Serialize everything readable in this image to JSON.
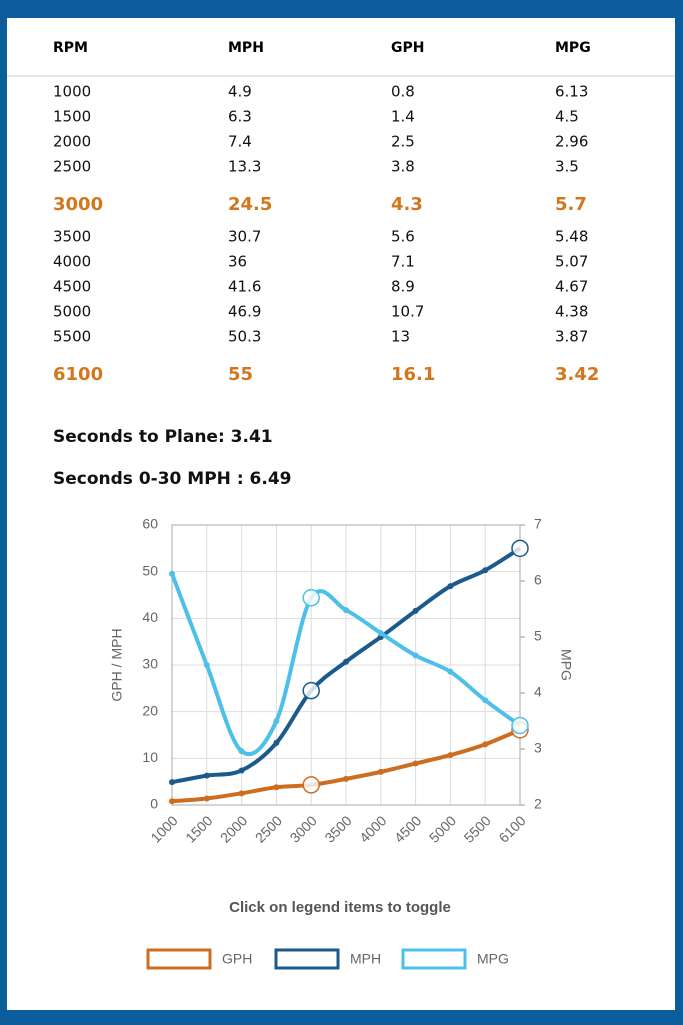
{
  "table_header": "RPM",
  "stats": [
    "Seconds to Plane: 3.41",
    "Seconds 0-30 MPH : 6.49"
  ],
  "chart_data": {
    "type": "line",
    "categories": [
      "1000",
      "1500",
      "2000",
      "2500",
      "3000",
      "3500",
      "4000",
      "4500",
      "5000",
      "5500",
      "6100"
    ],
    "series": [
      {
        "name": "GPH",
        "color": "#cc6d1f",
        "values": [
          0.8,
          1.4,
          2.5,
          3.8,
          4.3,
          5.6,
          7.1,
          8.9,
          10.7,
          13,
          16.1
        ]
      },
      {
        "name": "MPH",
        "color": "#1a5a8c",
        "values": [
          4.9,
          6.3,
          7.4,
          13.3,
          24.5,
          30.7,
          36,
          41.6,
          46.9,
          50.3,
          55
        ]
      },
      {
        "name": "MPG",
        "color": "#4cc0e8",
        "axis": "y2",
        "values": [
          6.13,
          4.5,
          2.96,
          3.5,
          5.7,
          5.48,
          5.07,
          4.67,
          4.38,
          3.87,
          3.42
        ]
      }
    ],
    "table_columns": [
      1,
      0,
      2
    ],
    "highlight_indices": [
      4,
      10
    ],
    "highlight_color": "#d2771e",
    "ylabel": "GPH / MPH",
    "y2label": "MPG",
    "ylim": [
      0,
      60
    ],
    "yticks": [
      0,
      10,
      20,
      30,
      40,
      50,
      60
    ],
    "y2lim": [
      2,
      7
    ],
    "y2ticks": [
      2,
      3,
      4,
      5,
      6,
      7
    ],
    "grid": true,
    "smooth": true,
    "note": "Click on legend items to toggle",
    "legend": "bottom"
  }
}
